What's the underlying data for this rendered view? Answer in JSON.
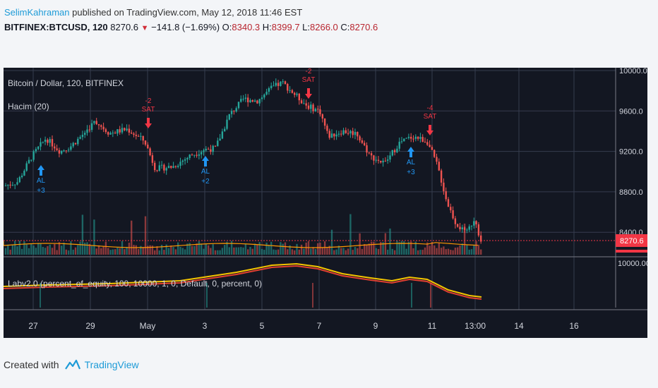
{
  "publish_line": {
    "author": "SelimKahraman",
    "rest": " published on TradingView.com, May 12, 2018 11:46 EST"
  },
  "ticker_line": {
    "symbol": "BITFINEX:BTCUSD, 120",
    "last": "8270.6",
    "change": "−141.8 (−1.69%)",
    "o_label": "O:",
    "o_val": "8340.3",
    "h_label": "H:",
    "h_val": "8399.7",
    "l_label": "L:",
    "l_val": "8266.0",
    "c_label": "C:",
    "c_val": "8270.6"
  },
  "chart": {
    "legend_main": "Bitcoin / Dollar, 120, BITFINEX",
    "legend_volume": "Hacim (20)",
    "legend_strategy": "Labv2.0 (percent_of_equity, 100, 10000, 1, 0, Default, 0, percent, 0)",
    "price_ticks": [
      "10000.0",
      "9600.0",
      "9200.0",
      "8800.0",
      "8400.0"
    ],
    "current_price": "8270.6",
    "lower_tick": "10000.0000",
    "x_ticks": [
      "27",
      "29",
      "May",
      "3",
      "5",
      "7",
      "9",
      "11",
      "13:00",
      "14",
      "16"
    ],
    "signals": [
      {
        "kind": "buy",
        "label": "AL",
        "value": "+3"
      },
      {
        "kind": "sell",
        "label": "SAT",
        "value": "-2"
      },
      {
        "kind": "buy",
        "label": "AL",
        "value": "+2"
      },
      {
        "kind": "sell",
        "label": "SAT",
        "value": "-2"
      },
      {
        "kind": "buy",
        "label": "AL",
        "value": "+3"
      },
      {
        "kind": "sell",
        "label": "SAT",
        "value": "-4"
      }
    ],
    "colors": {
      "background": "#131722",
      "grid": "#363c4e",
      "up": "#26a69a",
      "down": "#ef5350",
      "buy": "#2196f3",
      "sell": "#f23645",
      "equity": "#f5c400",
      "equity_shadow": "#e04030"
    }
  },
  "footer": {
    "created": "Created with",
    "brand": "TradingView",
    "logo_icon": "tradingview-logo-icon"
  }
}
